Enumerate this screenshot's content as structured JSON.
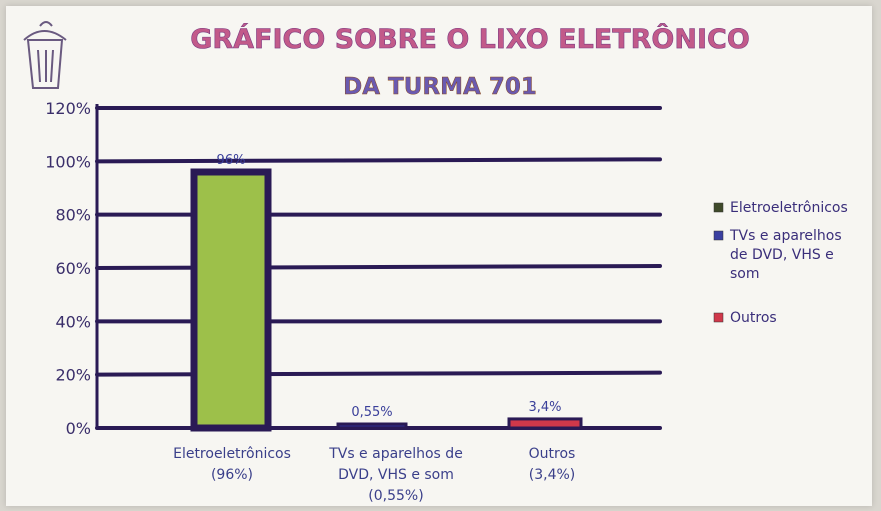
{
  "chart_data": {
    "type": "bar",
    "title": "GRÁFICO SOBRE O LIXO ELETRÔNICO",
    "subtitle": "DA TURMA 701",
    "categories": [
      "Eletroeletrônicos (96%)",
      "TVs e aparelhos de DVD, VHS e som (0,55%)",
      "Outros (3,4%)"
    ],
    "category_lines": [
      [
        "Eletroeletrônicos",
        "(96%)"
      ],
      [
        "TVs e aparelhos de",
        "DVD, VHS e som",
        "(0,55%)"
      ],
      [
        "Outros",
        "(3,4%)"
      ]
    ],
    "values": [
      96,
      0.55,
      3.4
    ],
    "data_labels": [
      "96%",
      "0,55%",
      "3,4%"
    ],
    "ylim": [
      0,
      120
    ],
    "yticks": [
      0,
      20,
      40,
      60,
      80,
      100,
      120
    ],
    "ytick_labels": [
      "0%",
      "20%",
      "40%",
      "60%",
      "80%",
      "100%",
      "120%"
    ],
    "grid": true,
    "legend_position": "right",
    "legend": [
      {
        "label": "Eletroeletrônicos",
        "color": "#3f4a2a"
      },
      {
        "label": "TVs e aparelhos de DVD, VHS e som",
        "color": "#3a3fa0"
      },
      {
        "label": "Outros",
        "color": "#d0384a"
      }
    ],
    "bar_colors": [
      "#9dc04a",
      "#2e2f8f",
      "#d0384a"
    ],
    "bar_outline_color": "#2a1a55"
  },
  "decoration": {
    "icon": "trash-can-icon"
  }
}
